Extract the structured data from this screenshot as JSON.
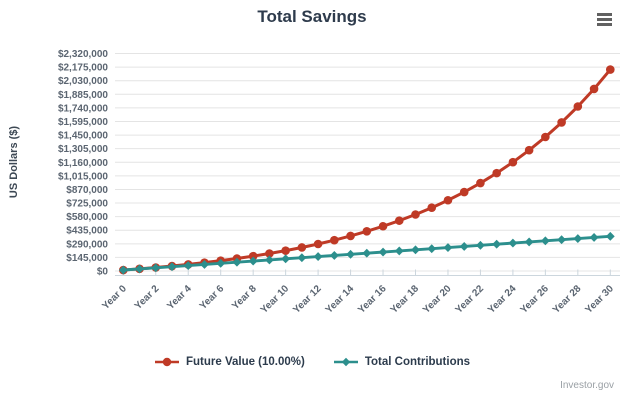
{
  "chart_data": {
    "type": "line",
    "title": "Total Savings",
    "ylabel": "US Dollars ($)",
    "xlabel": "",
    "categories": [
      "Year 0",
      "Year 1",
      "Year 2",
      "Year 3",
      "Year 4",
      "Year 5",
      "Year 6",
      "Year 7",
      "Year 8",
      "Year 9",
      "Year 10",
      "Year 11",
      "Year 12",
      "Year 13",
      "Year 14",
      "Year 15",
      "Year 16",
      "Year 17",
      "Year 18",
      "Year 19",
      "Year 20",
      "Year 21",
      "Year 22",
      "Year 23",
      "Year 24",
      "Year 25",
      "Year 26",
      "Year 27",
      "Year 28",
      "Year 29",
      "Year 30"
    ],
    "x_label_step": 2,
    "ylim": [
      0,
      2320000
    ],
    "y_ticks": [
      0,
      145000,
      290000,
      435000,
      580000,
      725000,
      870000,
      1015000,
      1160000,
      1305000,
      1450000,
      1595000,
      1740000,
      1885000,
      2030000,
      2175000,
      2320000
    ],
    "y_tick_labels": [
      "$0",
      "$145,000",
      "$290,000",
      "$435,000",
      "$580,000",
      "$725,000",
      "$870,000",
      "$1,015,000",
      "$1,160,000",
      "$1,305,000",
      "$1,450,000",
      "$1,595,000",
      "$1,740,000",
      "$1,885,000",
      "$2,030,000",
      "$2,175,000",
      "$2,320,000"
    ],
    "grid": "horizontal",
    "legend_position": "bottom",
    "series": [
      {
        "name": "Future Value (10.00%)",
        "color": "#bf3a26",
        "marker": "circle",
        "values": [
          10000,
          23000,
          37300,
          53000,
          70300,
          89400,
          110300,
          133300,
          158700,
          186500,
          217200,
          250900,
          288000,
          328800,
          373700,
          423000,
          477300,
          537100,
          602800,
          675100,
          754600,
          842000,
          938200,
          1044100,
          1160500,
          1288500,
          1429400,
          1584300,
          1754700,
          1942200,
          2148400
        ]
      },
      {
        "name": "Total Contributions",
        "color": "#2c8f8d",
        "marker": "diamond",
        "values": [
          10000,
          22000,
          34000,
          46000,
          58000,
          70000,
          82000,
          94000,
          106000,
          118000,
          130000,
          142000,
          154000,
          166000,
          178000,
          190000,
          202000,
          214000,
          226000,
          238000,
          250000,
          262000,
          274000,
          286000,
          298000,
          310000,
          322000,
          334000,
          346000,
          358000,
          370000
        ]
      }
    ],
    "colors": {
      "grid_line": "#e4e4e4",
      "axis_line": "#ccd6dd",
      "title_text": "#2e3b4c",
      "tick_text": "#5b6571"
    }
  },
  "menu": {
    "icon_name": "hamburger-menu-icon"
  },
  "credits": {
    "label": "Investor.gov"
  }
}
